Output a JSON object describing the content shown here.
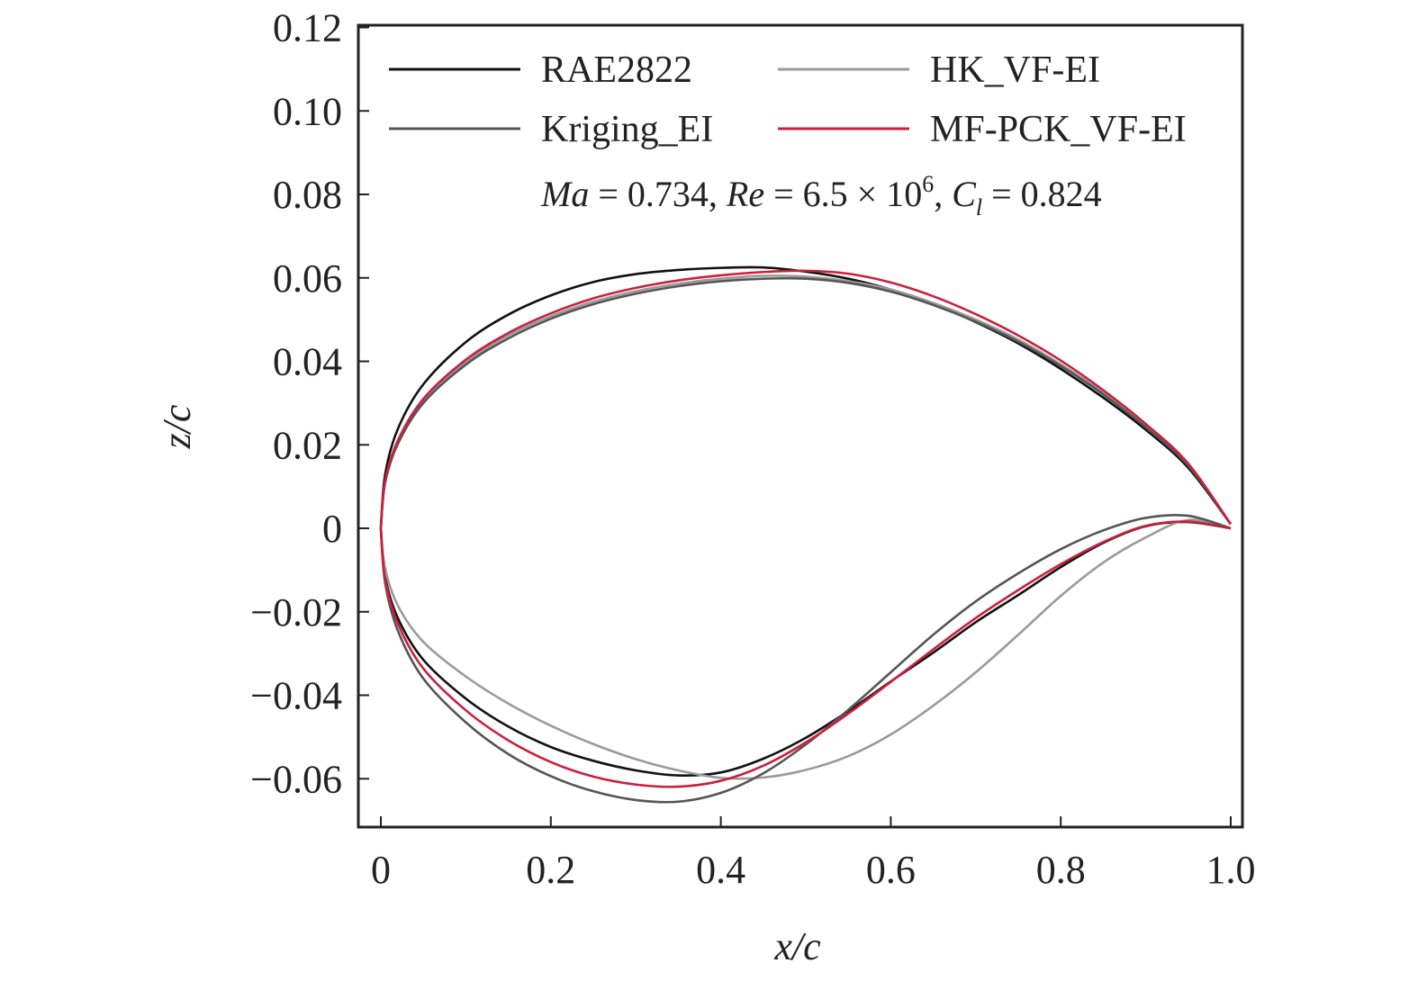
{
  "chart_data": {
    "type": "line",
    "xlabel": "x/c",
    "ylabel": "z/c",
    "xlim": [
      0,
      1.0
    ],
    "ylim": [
      -0.07,
      0.12
    ],
    "x_ticks": [
      "0",
      "0.2",
      "0.4",
      "0.6",
      "0.8",
      "1.0"
    ],
    "y_ticks": [
      "−0.06",
      "−0.04",
      "−0.02",
      "0",
      "0.02",
      "0.04",
      "0.06",
      "0.08",
      "0.10",
      "0.12"
    ],
    "grid": false,
    "legend_position": "top",
    "annotation": {
      "ma_symbol": "Ma",
      "ma_value": " = 0.734, ",
      "re_symbol": "Re",
      "re_value": " = 6.5 × 10",
      "re_exp": "6",
      "sep": ", ",
      "cl_symbol": "C",
      "cl_sub": "l",
      "cl_value": " = 0.824"
    },
    "series": [
      {
        "name": "RAE2822",
        "color": "#111111",
        "upper": [
          [
            0,
            0
          ],
          [
            0.005,
            0.0128
          ],
          [
            0.02,
            0.0238
          ],
          [
            0.05,
            0.0345
          ],
          [
            0.1,
            0.0446
          ],
          [
            0.15,
            0.0512
          ],
          [
            0.2,
            0.0558
          ],
          [
            0.25,
            0.059
          ],
          [
            0.3,
            0.0609
          ],
          [
            0.35,
            0.0619
          ],
          [
            0.4,
            0.0624
          ],
          [
            0.45,
            0.0625
          ],
          [
            0.5,
            0.0615
          ],
          [
            0.55,
            0.0598
          ],
          [
            0.6,
            0.0572
          ],
          [
            0.65,
            0.0538
          ],
          [
            0.7,
            0.0494
          ],
          [
            0.75,
            0.0443
          ],
          [
            0.8,
            0.0382
          ],
          [
            0.85,
            0.0313
          ],
          [
            0.9,
            0.0236
          ],
          [
            0.95,
            0.0145
          ],
          [
            1.0,
            0.001
          ]
        ],
        "lower": [
          [
            0,
            0
          ],
          [
            0.005,
            -0.0115
          ],
          [
            0.02,
            -0.0215
          ],
          [
            0.05,
            -0.0315
          ],
          [
            0.1,
            -0.0408
          ],
          [
            0.15,
            -0.0475
          ],
          [
            0.2,
            -0.0524
          ],
          [
            0.25,
            -0.0557
          ],
          [
            0.3,
            -0.058
          ],
          [
            0.35,
            -0.0592
          ],
          [
            0.4,
            -0.0585
          ],
          [
            0.45,
            -0.0552
          ],
          [
            0.5,
            -0.0502
          ],
          [
            0.55,
            -0.0438
          ],
          [
            0.6,
            -0.0367
          ],
          [
            0.65,
            -0.0298
          ],
          [
            0.7,
            -0.0225
          ],
          [
            0.75,
            -0.016
          ],
          [
            0.8,
            -0.0093
          ],
          [
            0.85,
            -0.0035
          ],
          [
            0.9,
            0.0005
          ],
          [
            0.95,
            0.0015
          ],
          [
            1.0,
            0.0
          ]
        ]
      },
      {
        "name": "HK_VF-EI",
        "color": "#9a9a9a",
        "upper": [
          [
            0,
            0
          ],
          [
            0.005,
            0.011
          ],
          [
            0.02,
            0.0205
          ],
          [
            0.05,
            0.0305
          ],
          [
            0.1,
            0.0398
          ],
          [
            0.15,
            0.0462
          ],
          [
            0.2,
            0.0508
          ],
          [
            0.25,
            0.0543
          ],
          [
            0.3,
            0.0568
          ],
          [
            0.35,
            0.0586
          ],
          [
            0.4,
            0.0598
          ],
          [
            0.45,
            0.0605
          ],
          [
            0.5,
            0.0603
          ],
          [
            0.55,
            0.0592
          ],
          [
            0.6,
            0.0572
          ],
          [
            0.65,
            0.054
          ],
          [
            0.7,
            0.05
          ],
          [
            0.75,
            0.0452
          ],
          [
            0.8,
            0.0393
          ],
          [
            0.85,
            0.0325
          ],
          [
            0.9,
            0.0246
          ],
          [
            0.95,
            0.0153
          ],
          [
            1.0,
            0.001
          ]
        ],
        "lower": [
          [
            0,
            0
          ],
          [
            0.005,
            -0.0095
          ],
          [
            0.02,
            -0.0185
          ],
          [
            0.05,
            -0.0272
          ],
          [
            0.1,
            -0.0355
          ],
          [
            0.15,
            -0.042
          ],
          [
            0.2,
            -0.0473
          ],
          [
            0.25,
            -0.0517
          ],
          [
            0.3,
            -0.0553
          ],
          [
            0.35,
            -0.058
          ],
          [
            0.4,
            -0.0598
          ],
          [
            0.45,
            -0.0597
          ],
          [
            0.5,
            -0.0579
          ],
          [
            0.55,
            -0.0546
          ],
          [
            0.6,
            -0.0494
          ],
          [
            0.65,
            -0.0425
          ],
          [
            0.7,
            -0.0345
          ],
          [
            0.75,
            -0.0255
          ],
          [
            0.8,
            -0.0162
          ],
          [
            0.85,
            -0.0082
          ],
          [
            0.9,
            -0.0022
          ],
          [
            0.95,
            0.002
          ],
          [
            1.0,
            0.0
          ]
        ]
      },
      {
        "name": "Kriging_EI",
        "color": "#555555",
        "upper": [
          [
            0,
            0
          ],
          [
            0.005,
            0.0108
          ],
          [
            0.02,
            0.0202
          ],
          [
            0.05,
            0.03
          ],
          [
            0.1,
            0.0392
          ],
          [
            0.15,
            0.0455
          ],
          [
            0.2,
            0.0502
          ],
          [
            0.25,
            0.0537
          ],
          [
            0.3,
            0.0562
          ],
          [
            0.35,
            0.058
          ],
          [
            0.4,
            0.0592
          ],
          [
            0.45,
            0.0598
          ],
          [
            0.5,
            0.0598
          ],
          [
            0.55,
            0.0588
          ],
          [
            0.6,
            0.0567
          ],
          [
            0.65,
            0.0535
          ],
          [
            0.7,
            0.0495
          ],
          [
            0.75,
            0.0447
          ],
          [
            0.8,
            0.0389
          ],
          [
            0.85,
            0.0321
          ],
          [
            0.9,
            0.0242
          ],
          [
            0.95,
            0.015
          ],
          [
            1.0,
            0.001
          ]
        ],
        "lower": [
          [
            0,
            0
          ],
          [
            0.005,
            -0.013
          ],
          [
            0.02,
            -0.0245
          ],
          [
            0.05,
            -0.036
          ],
          [
            0.1,
            -0.0465
          ],
          [
            0.15,
            -0.0541
          ],
          [
            0.2,
            -0.0594
          ],
          [
            0.25,
            -0.063
          ],
          [
            0.3,
            -0.0651
          ],
          [
            0.35,
            -0.0655
          ],
          [
            0.4,
            -0.0634
          ],
          [
            0.45,
            -0.0587
          ],
          [
            0.5,
            -0.0518
          ],
          [
            0.55,
            -0.0435
          ],
          [
            0.6,
            -0.0345
          ],
          [
            0.65,
            -0.0255
          ],
          [
            0.7,
            -0.0175
          ],
          [
            0.75,
            -0.0108
          ],
          [
            0.8,
            -0.005
          ],
          [
            0.85,
            -0.0005
          ],
          [
            0.9,
            0.0025
          ],
          [
            0.95,
            0.003
          ],
          [
            1.0,
            0.0
          ]
        ]
      },
      {
        "name": "MF-PCK_VF-EI",
        "color": "#cc1f3d",
        "upper": [
          [
            0,
            0
          ],
          [
            0.005,
            0.0113
          ],
          [
            0.02,
            0.021
          ],
          [
            0.05,
            0.031
          ],
          [
            0.1,
            0.0404
          ],
          [
            0.15,
            0.0468
          ],
          [
            0.2,
            0.0515
          ],
          [
            0.25,
            0.0551
          ],
          [
            0.3,
            0.0576
          ],
          [
            0.35,
            0.0594
          ],
          [
            0.4,
            0.0606
          ],
          [
            0.45,
            0.0614
          ],
          [
            0.5,
            0.0617
          ],
          [
            0.55,
            0.061
          ],
          [
            0.6,
            0.0589
          ],
          [
            0.65,
            0.0556
          ],
          [
            0.7,
            0.0513
          ],
          [
            0.75,
            0.0462
          ],
          [
            0.8,
            0.0402
          ],
          [
            0.85,
            0.0331
          ],
          [
            0.9,
            0.025
          ],
          [
            0.95,
            0.0155
          ],
          [
            1.0,
            0.001
          ]
        ],
        "lower": [
          [
            0,
            0
          ],
          [
            0.005,
            -0.0121
          ],
          [
            0.02,
            -0.0228
          ],
          [
            0.05,
            -0.0336
          ],
          [
            0.1,
            -0.0436
          ],
          [
            0.15,
            -0.0508
          ],
          [
            0.2,
            -0.056
          ],
          [
            0.25,
            -0.0595
          ],
          [
            0.3,
            -0.0614
          ],
          [
            0.35,
            -0.0619
          ],
          [
            0.4,
            -0.0605
          ],
          [
            0.45,
            -0.0569
          ],
          [
            0.5,
            -0.0513
          ],
          [
            0.55,
            -0.0444
          ],
          [
            0.6,
            -0.0368
          ],
          [
            0.65,
            -0.029
          ],
          [
            0.7,
            -0.0215
          ],
          [
            0.75,
            -0.0148
          ],
          [
            0.8,
            -0.0086
          ],
          [
            0.85,
            -0.0033
          ],
          [
            0.9,
            0.0006
          ],
          [
            0.95,
            0.0016
          ],
          [
            1.0,
            0.0
          ]
        ]
      }
    ]
  }
}
